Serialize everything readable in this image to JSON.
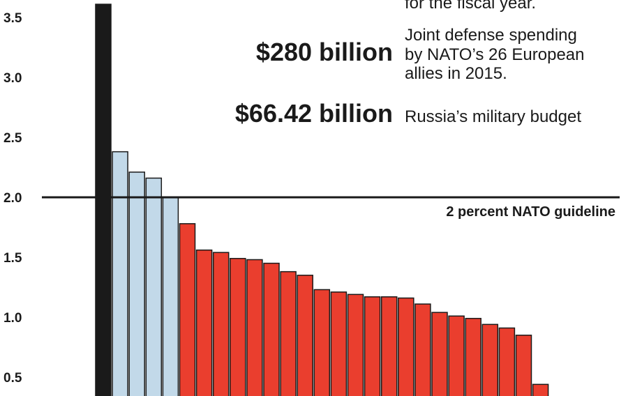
{
  "chart_data": {
    "type": "bar",
    "ylim": [
      0.3,
      3.65
    ],
    "yticks": [
      "0.5",
      "1.0",
      "1.5",
      "2.0",
      "2.5",
      "3.0",
      "3.5"
    ],
    "ytick_values": [
      0.5,
      1.0,
      1.5,
      2.0,
      2.5,
      3.0,
      3.5
    ],
    "values": [
      3.61,
      2.38,
      2.21,
      2.16,
      2.0,
      1.78,
      1.56,
      1.54,
      1.49,
      1.48,
      1.45,
      1.38,
      1.35,
      1.23,
      1.21,
      1.19,
      1.17,
      1.17,
      1.16,
      1.11,
      1.04,
      1.01,
      0.99,
      0.94,
      0.91,
      0.85,
      0.44
    ],
    "colors": {
      "top": "#1a1a1a",
      "above_guideline": "#c2d9e9",
      "below_guideline": "#ea3e2e",
      "outline": "#1a1a1a"
    },
    "reference_line": {
      "value": 2.0,
      "label": "2 percent NATO guideline"
    },
    "annotations": [
      {
        "amount": "",
        "description": [
          "for the fiscal year."
        ]
      },
      {
        "amount": "$280 billion",
        "description": [
          "Joint defense spending",
          "by NATO’s 26 European",
          "allies in 2015."
        ]
      },
      {
        "amount": "$66.42 billion",
        "description": [
          "Russia’s military budget"
        ]
      }
    ]
  }
}
